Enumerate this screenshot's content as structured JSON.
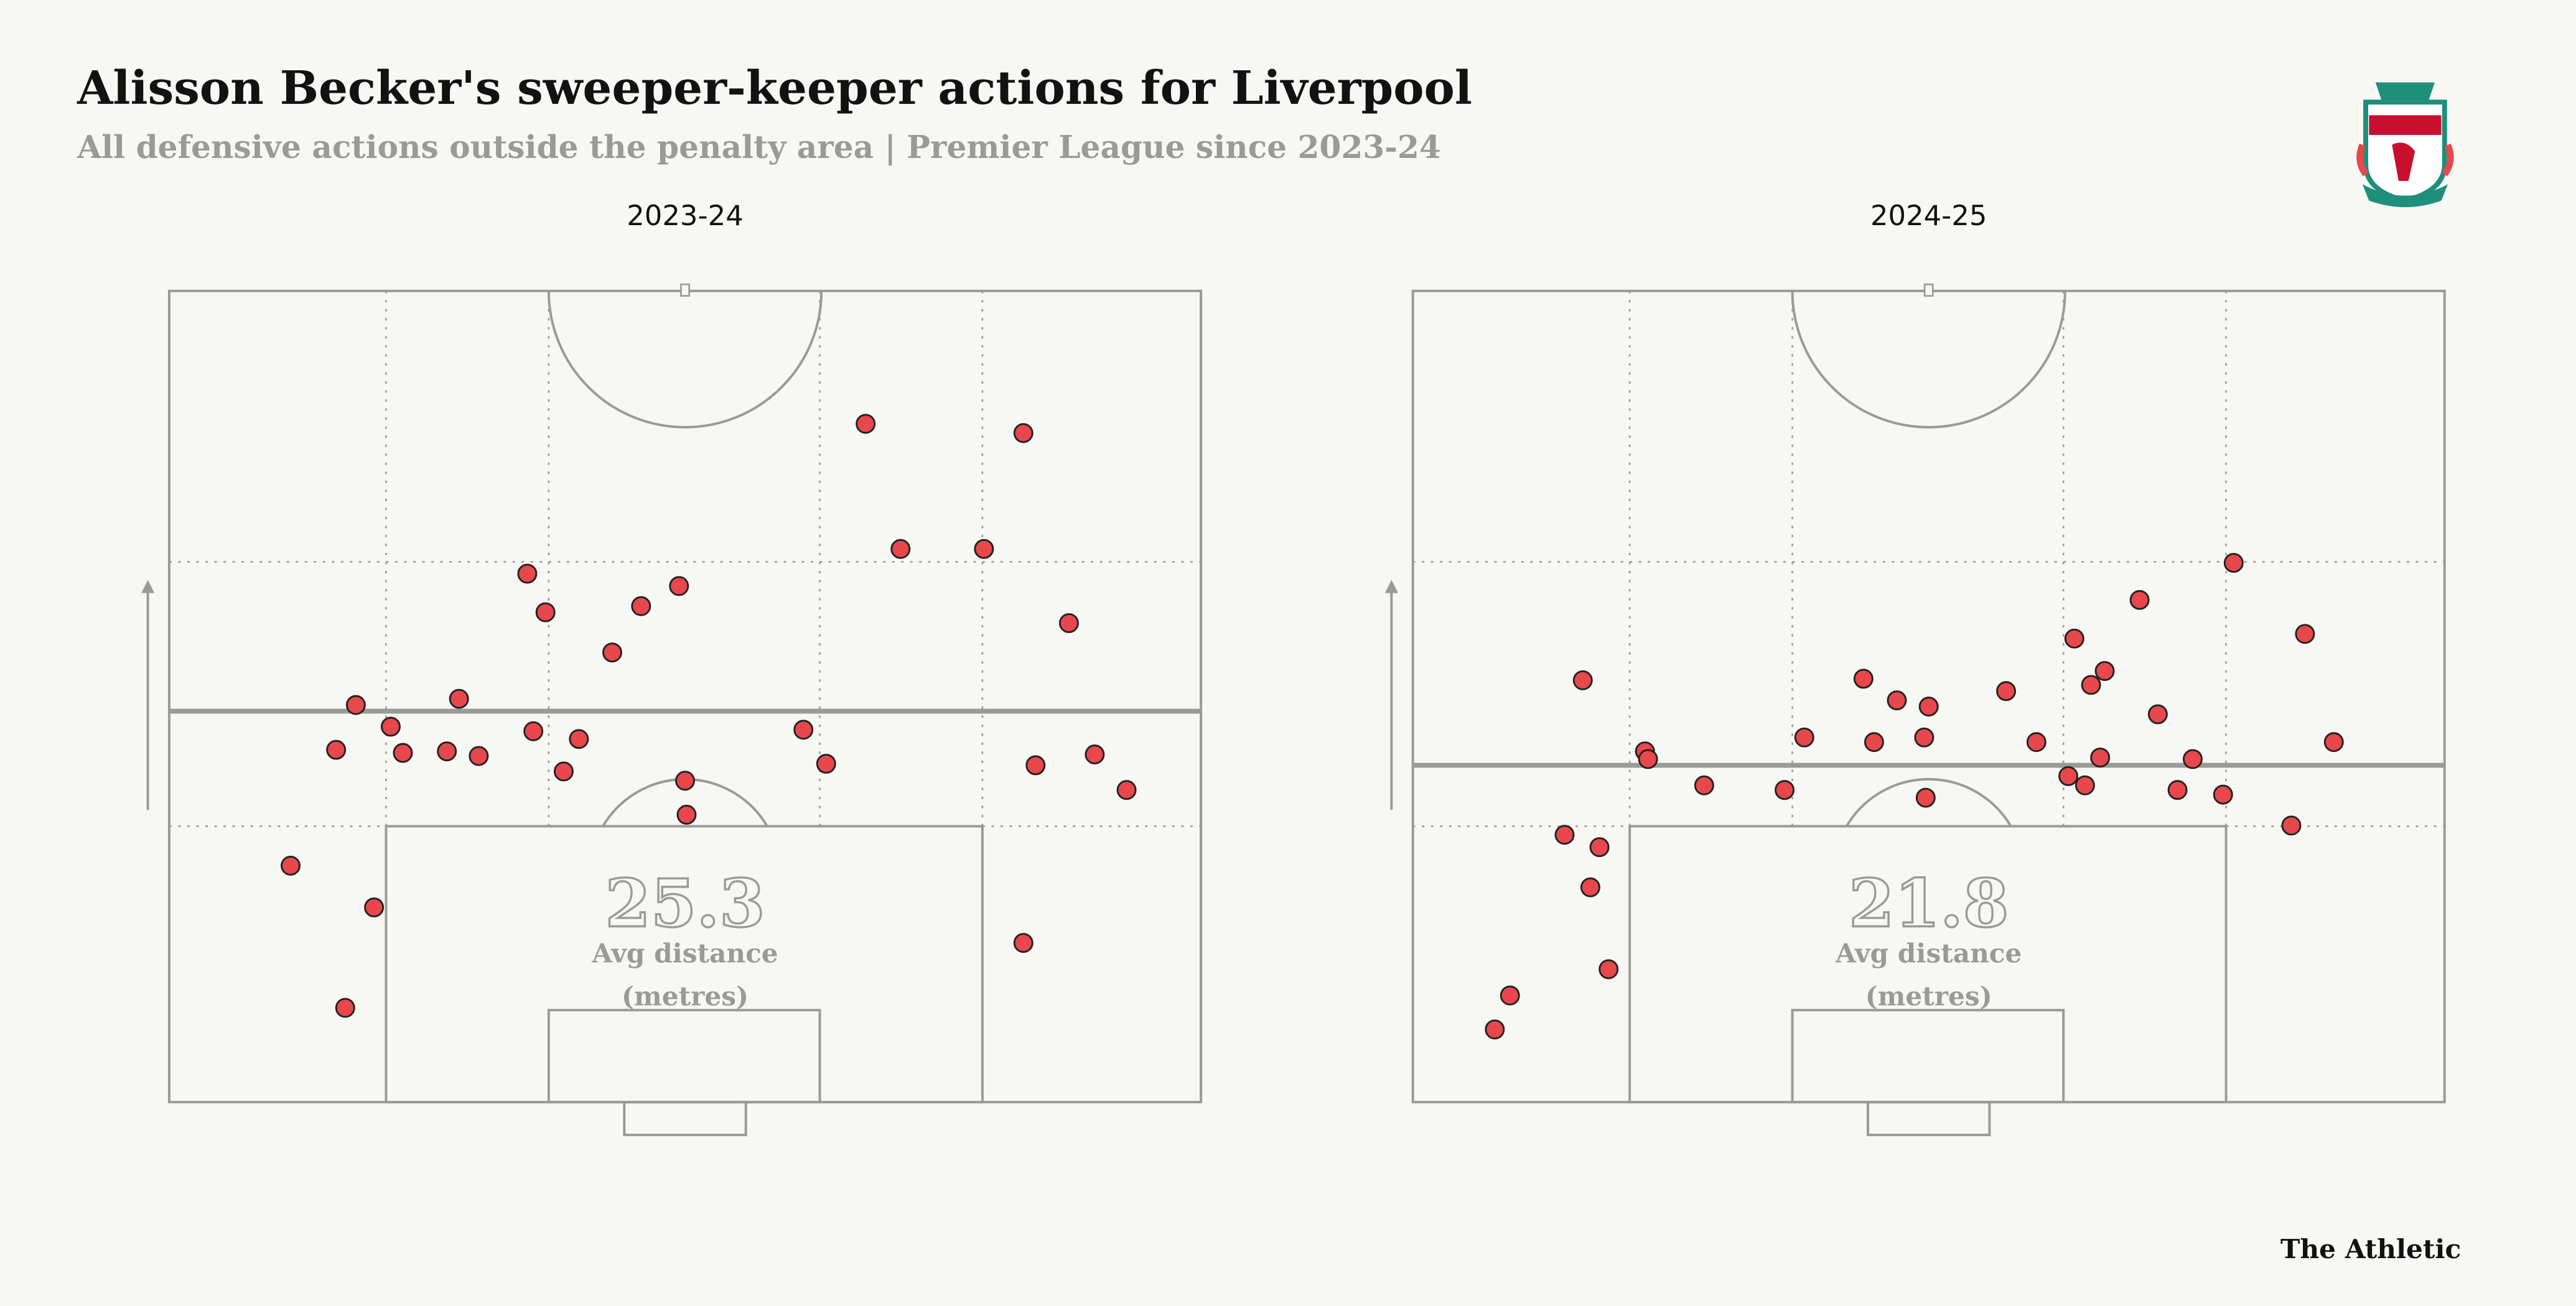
{
  "title": "Alisson Becker's sweeper-keeper actions for Liverpool",
  "subtitle": "All defensive actions outside the penalty area | Premier League since 2023-24",
  "source": "The Athletic",
  "chart_data": [
    {
      "type": "scatter",
      "title": "2023-24",
      "color": "#e8474c",
      "xlim": [
        0,
        68
      ],
      "ylim": [
        0,
        52.5
      ],
      "x": [
        45.9,
        56.3,
        48.2,
        53.7,
        23.6,
        33.6,
        31.1,
        24.8,
        59.3,
        29.2,
        19.1,
        12.3,
        14.6,
        41.8,
        24.0,
        27.0,
        11.0,
        15.4,
        18.3,
        20.4,
        61.0,
        43.3,
        57.1,
        26.0,
        34.0,
        63.1,
        34.1,
        8.0,
        13.5,
        56.3,
        11.6
      ],
      "y": [
        43.9,
        43.3,
        35.8,
        35.8,
        34.2,
        33.4,
        32.1,
        31.7,
        31.0,
        29.1,
        26.1,
        25.7,
        24.3,
        24.1,
        24.0,
        23.5,
        22.8,
        22.6,
        22.7,
        22.4,
        22.5,
        21.9,
        21.8,
        21.4,
        20.8,
        20.2,
        18.6,
        15.3,
        12.6,
        10.3,
        6.1
      ],
      "annotation": {
        "value": 25.3,
        "label": "Avg distance",
        "unit": "(metres)"
      }
    },
    {
      "type": "scatter",
      "title": "2024-25",
      "color": "#e8474c",
      "xlim": [
        0,
        68
      ],
      "ylim": [
        0,
        52.5
      ],
      "x": [
        54.1,
        47.9,
        58.8,
        43.6,
        45.6,
        11.2,
        29.7,
        44.7,
        31.9,
        34.0,
        39.1,
        49.1,
        25.8,
        30.4,
        33.7,
        41.1,
        60.7,
        15.3,
        15.5,
        45.3,
        51.4,
        43.2,
        44.3,
        19.2,
        24.5,
        50.4,
        53.4,
        33.8,
        57.9,
        10.0,
        12.3,
        11.7,
        12.9,
        6.4,
        5.4
      ],
      "y": [
        34.9,
        32.5,
        30.3,
        30.0,
        27.9,
        27.3,
        27.4,
        27.0,
        26.0,
        25.6,
        26.6,
        25.1,
        23.6,
        23.3,
        23.6,
        23.3,
        23.3,
        22.7,
        22.2,
        22.3,
        22.2,
        21.1,
        20.5,
        20.5,
        20.2,
        20.2,
        19.9,
        19.7,
        17.9,
        17.3,
        16.5,
        13.9,
        8.6,
        6.9,
        4.7
      ],
      "annotation": {
        "value": 21.8,
        "label": "Avg distance",
        "unit": "(metres)"
      }
    }
  ]
}
